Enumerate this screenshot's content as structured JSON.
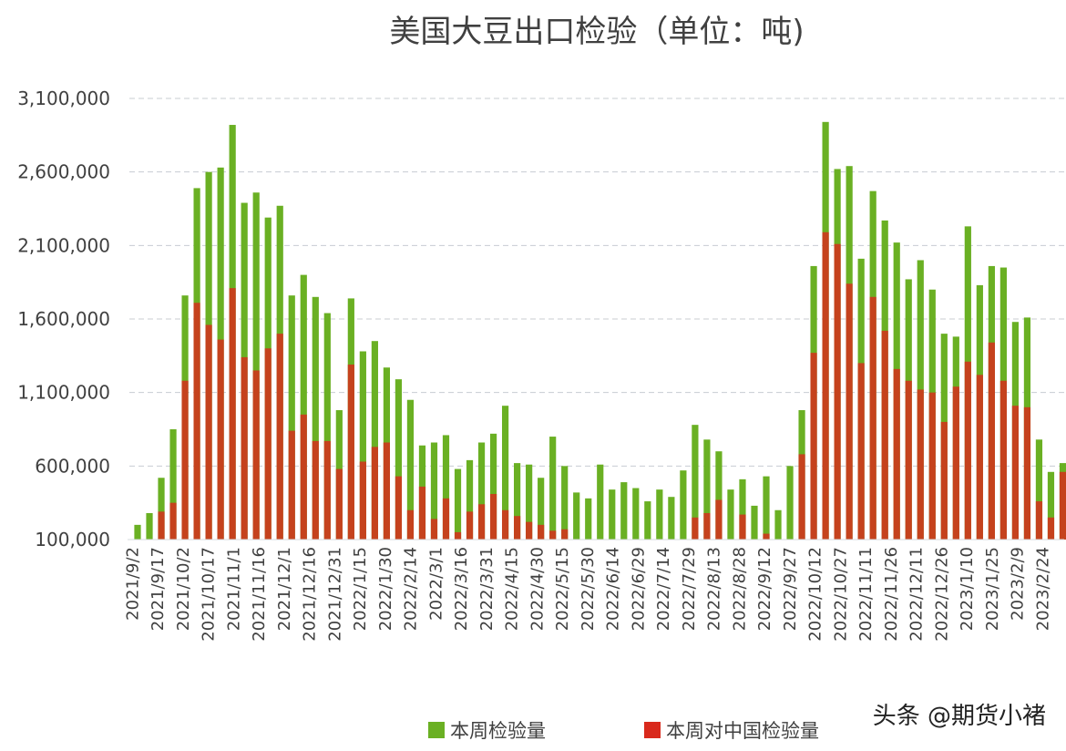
{
  "chart_data": {
    "type": "bar",
    "title": "美国大豆出口检验（单位：吨)",
    "ylim": [
      100000,
      3100000
    ],
    "yticks": [
      100000,
      600000,
      1100000,
      1600000,
      2100000,
      2600000,
      3100000
    ],
    "ytick_labels": [
      "100,000",
      "600,000",
      "1,100,000",
      "1,600,000",
      "2,100,000",
      "2,600,000",
      "3,100,000"
    ],
    "grid": true,
    "legend_position": "bottom",
    "xtick_labels": [
      "2021/9/2",
      "2021/9/17",
      "2021/10/2",
      "2021/10/17",
      "2021/11/1",
      "2021/11/16",
      "2021/12/1",
      "2021/12/16",
      "2021/12/31",
      "2022/1/15",
      "2022/1/30",
      "2022/2/14",
      "2022/3/1",
      "2022/3/16",
      "2022/3/31",
      "2022/4/15",
      "2022/4/30",
      "2022/5/15",
      "2022/5/30",
      "2022/6/14",
      "2022/6/29",
      "2022/7/14",
      "2022/7/29",
      "2022/8/13",
      "2022/8/28",
      "2022/9/12",
      "2022/9/27",
      "2022/10/12",
      "2022/10/27",
      "2022/11/11",
      "2022/11/26",
      "2022/12/11",
      "2022/12/26",
      "2023/1/10",
      "2023/1/25",
      "2023/2/9",
      "2023/2/24"
    ],
    "series": [
      {
        "name": "本周检验量",
        "color": "#6ab023",
        "values": [
          200000,
          280000,
          520000,
          850000,
          1760000,
          2490000,
          2600000,
          2630000,
          2920000,
          2390000,
          2460000,
          2290000,
          2370000,
          1760000,
          1900000,
          1750000,
          1640000,
          980000,
          1740000,
          1380000,
          1450000,
          1270000,
          1190000,
          1050000,
          740000,
          760000,
          810000,
          580000,
          640000,
          760000,
          820000,
          1010000,
          620000,
          610000,
          520000,
          800000,
          600000,
          420000,
          380000,
          610000,
          440000,
          490000,
          450000,
          360000,
          440000,
          390000,
          570000,
          880000,
          780000,
          700000,
          440000,
          510000,
          330000,
          530000,
          300000,
          600000,
          980000,
          1960000,
          2940000,
          2620000,
          2640000,
          2010000,
          2470000,
          2270000,
          2120000,
          1870000,
          2000000,
          1800000,
          1500000,
          1480000,
          2230000,
          1830000,
          1960000,
          1950000,
          1580000,
          1610000,
          780000,
          560000,
          620000
        ]
      },
      {
        "name": "本周对中国检验量",
        "color": "#d9291c",
        "values": [
          0,
          20000,
          290000,
          350000,
          1180000,
          1710000,
          1560000,
          1460000,
          1810000,
          1340000,
          1250000,
          1400000,
          1500000,
          840000,
          950000,
          770000,
          770000,
          580000,
          1290000,
          630000,
          730000,
          760000,
          530000,
          300000,
          460000,
          240000,
          380000,
          150000,
          290000,
          340000,
          410000,
          300000,
          260000,
          220000,
          200000,
          160000,
          170000,
          70000,
          60000,
          70000,
          60000,
          70000,
          60000,
          50000,
          80000,
          60000,
          70000,
          250000,
          280000,
          370000,
          60000,
          270000,
          60000,
          140000,
          60000,
          80000,
          680000,
          1370000,
          2190000,
          2110000,
          1840000,
          1300000,
          1750000,
          1520000,
          1260000,
          1180000,
          1120000,
          1100000,
          900000,
          1140000,
          1310000,
          1220000,
          1440000,
          1180000,
          1010000,
          1000000,
          360000,
          250000,
          560000
        ]
      }
    ]
  },
  "watermark": "头条 @期货小褚"
}
